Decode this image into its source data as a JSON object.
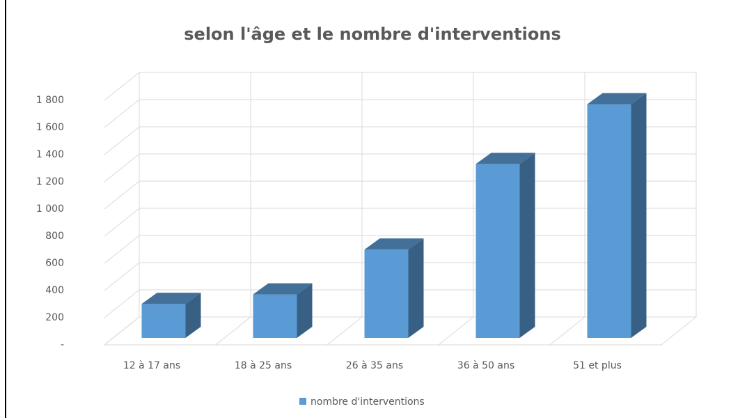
{
  "chart_data": {
    "type": "bar3d",
    "title": "selon l'âge et le nombre d'interventions",
    "categories": [
      "12 à 17 ans",
      "18 à 25 ans",
      "26 à 35 ans",
      "36 à 50 ans",
      "51 et plus"
    ],
    "series": [
      {
        "name": "nombre d'interventions",
        "color": "#5b9bd5",
        "values": [
          250,
          320,
          650,
          1280,
          1720
        ]
      }
    ],
    "ylim": [
      0,
      1800
    ],
    "yticks": [
      {
        "value": 0,
        "label": "-"
      },
      200,
      400,
      600,
      800,
      {
        "value": 1000,
        "label": "1 000"
      },
      {
        "value": 1200,
        "label": "1 200"
      },
      {
        "value": 1400,
        "label": "1 400"
      },
      {
        "value": 1600,
        "label": "1 600"
      },
      {
        "value": 1800,
        "label": "1 800"
      }
    ],
    "grid": true,
    "legend": "bottom"
  }
}
